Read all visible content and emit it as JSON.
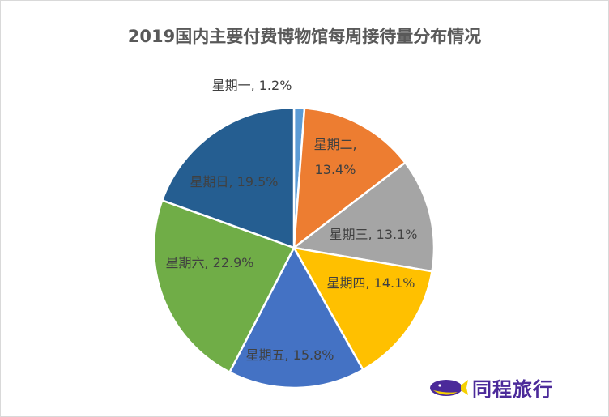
{
  "chart_data": {
    "type": "pie",
    "title": "2019国内主要付费博物馆每周接待量分布情况",
    "categories": [
      "星期一",
      "星期二",
      "星期三",
      "星期四",
      "星期五",
      "星期六",
      "星期日"
    ],
    "values": [
      1.2,
      13.4,
      13.1,
      14.1,
      15.8,
      22.9,
      19.5
    ],
    "unit": "%",
    "data_labels": [
      "星期一, 1.2%",
      "星期二, 13.4%",
      "星期三, 13.1%",
      "星期四, 14.1%",
      "星期五, 15.8%",
      "星期六, 22.9%",
      "星期日, 19.5%"
    ],
    "colors": [
      "#5B9BD5",
      "#ED7D31",
      "#A5A5A5",
      "#FFC000",
      "#4472C4",
      "#70AD47",
      "#255E91"
    ],
    "legend": "none"
  },
  "watermark": {
    "text": "同程旅行",
    "color": "#4b2a9a"
  }
}
